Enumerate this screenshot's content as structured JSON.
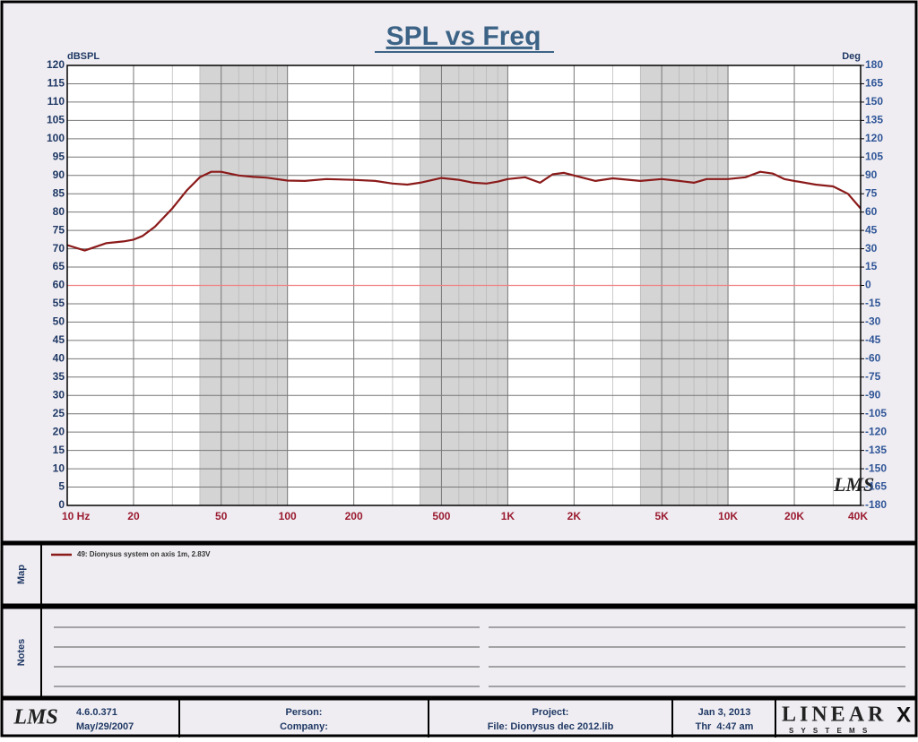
{
  "chart_data": {
    "type": "line",
    "title": "SPL vs Freq",
    "ylabel": "dBSPL",
    "y2label": "Deg",
    "log_x": true,
    "grid": true,
    "xlim": [
      10,
      40000
    ],
    "xticks": [
      {
        "value": 10,
        "label": "10 Hz"
      },
      20,
      50,
      100,
      200,
      500,
      {
        "value": 1000,
        "label": "1K"
      },
      {
        "value": 2000,
        "label": "2K"
      },
      {
        "value": 5000,
        "label": "5K"
      },
      {
        "value": 10000,
        "label": "10K"
      },
      {
        "value": 20000,
        "label": "20K"
      },
      {
        "value": 40000,
        "label": "40K"
      }
    ],
    "x_minor_grid": [
      30,
      40,
      60,
      70,
      80,
      90,
      300,
      400,
      600,
      700,
      800,
      900,
      3000,
      4000,
      6000,
      7000,
      8000,
      9000,
      30000
    ],
    "ylim": [
      0,
      120
    ],
    "yticks": [
      0,
      5,
      10,
      15,
      20,
      25,
      30,
      35,
      40,
      45,
      50,
      55,
      60,
      65,
      70,
      75,
      80,
      85,
      90,
      95,
      100,
      105,
      110,
      115,
      120
    ],
    "y2lim": [
      -180,
      180
    ],
    "y2ticks": [
      -180,
      -165,
      -150,
      -135,
      -120,
      -105,
      -90,
      -75,
      -60,
      -45,
      -30,
      -15,
      0,
      15,
      30,
      45,
      60,
      75,
      90,
      105,
      120,
      135,
      150,
      165,
      180
    ],
    "hline": 60,
    "series": [
      {
        "name": "49: Dionysus system on axis 1m, 2.83V",
        "color": "#8b1a1a",
        "x": [
          10,
          12,
          15,
          18,
          20,
          22,
          25,
          30,
          35,
          40,
          45,
          50,
          60,
          70,
          80,
          100,
          120,
          150,
          200,
          250,
          300,
          350,
          400,
          500,
          600,
          700,
          800,
          900,
          1000,
          1200,
          1400,
          1600,
          1800,
          2000,
          2500,
          3000,
          4000,
          5000,
          6000,
          7000,
          8000,
          10000,
          12000,
          14000,
          16000,
          18000,
          20000,
          25000,
          30000,
          35000,
          40000
        ],
        "values": [
          71,
          69.5,
          71.5,
          72,
          72.5,
          73.5,
          76,
          81,
          86,
          89.5,
          91,
          91,
          90,
          89.6,
          89.4,
          88.6,
          88.5,
          89,
          88.8,
          88.5,
          87.8,
          87.5,
          88,
          89.3,
          88.8,
          88,
          87.8,
          88.3,
          89,
          89.5,
          88,
          90.3,
          90.7,
          90,
          88.5,
          89.2,
          88.5,
          89,
          88.5,
          88,
          89,
          89,
          89.5,
          91,
          90.5,
          89,
          88.5,
          87.5,
          87,
          85,
          81
        ]
      }
    ]
  },
  "logo": "LMS",
  "map_label": "Map",
  "notes_label": "Notes",
  "footer": {
    "version": "4.6.0.371",
    "version_date": "May/29/2007",
    "person": "Person:",
    "company": "Company:",
    "project": "Project:",
    "file": "File: Dionysus dec 2012.lib",
    "date": "Jan 3, 2013",
    "time": "Thr  4:47 am",
    "brand": "LINEAR",
    "brand_x": "X",
    "brand_sub": "S Y S T E M S"
  }
}
